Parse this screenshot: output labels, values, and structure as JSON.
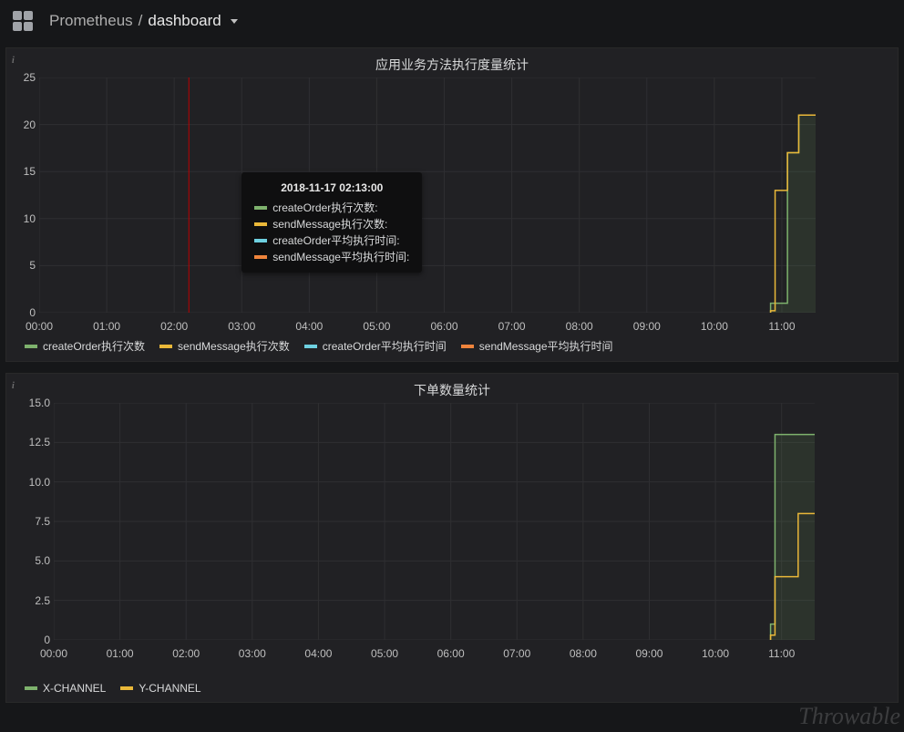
{
  "breadcrumb": {
    "root": "Prometheus",
    "sep": "/",
    "current": "dashboard"
  },
  "watermark": "Throwable",
  "colors": {
    "green": "#7eb26d",
    "yellow": "#eab839",
    "cyan": "#6ed0e0",
    "orange": "#ef843c",
    "grid": "#2f2f32",
    "hover": "#bb0000"
  },
  "panel1": {
    "title": "应用业务方法执行度量统计",
    "y": {
      "min": 0,
      "max": 25,
      "ticks": [
        0,
        5,
        10,
        15,
        20,
        25
      ]
    },
    "x": {
      "labels": [
        "00:00",
        "01:00",
        "02:00",
        "03:00",
        "04:00",
        "05:00",
        "06:00",
        "07:00",
        "08:00",
        "09:00",
        "10:00",
        "11:00"
      ]
    },
    "series": [
      {
        "key": "s1",
        "label": "createOrder执行次数",
        "color": "#7eb26d",
        "fill": true,
        "steps": [
          {
            "t": 10.833,
            "v": 1
          },
          {
            "t": 11.083,
            "v": 17
          },
          {
            "t": 11.25,
            "v": 21
          }
        ]
      },
      {
        "key": "s2",
        "label": "sendMessage执行次数",
        "color": "#eab839",
        "fill": false,
        "steps": [
          {
            "t": 10.833,
            "v": 0.2
          },
          {
            "t": 10.9,
            "v": 13
          },
          {
            "t": 11.083,
            "v": 17
          },
          {
            "t": 11.25,
            "v": 21
          }
        ]
      },
      {
        "key": "s3",
        "label": "createOrder平均执行时间",
        "color": "#6ed0e0",
        "fill": false,
        "steps": []
      },
      {
        "key": "s4",
        "label": "sendMessage平均执行时间",
        "color": "#ef843c",
        "fill": false,
        "steps": []
      }
    ],
    "hover": {
      "t": 2.217,
      "title": "2018-11-17 02:13:00",
      "rows": [
        {
          "color": "#7eb26d",
          "label": "createOrder执行次数:"
        },
        {
          "color": "#eab839",
          "label": "sendMessage执行次数:"
        },
        {
          "color": "#6ed0e0",
          "label": "createOrder平均执行时间:"
        },
        {
          "color": "#ef843c",
          "label": "sendMessage平均执行时间:"
        }
      ]
    }
  },
  "panel2": {
    "title": "下单数量统计",
    "y": {
      "min": 0,
      "max": 15,
      "ticks": [
        0,
        2.5,
        5.0,
        7.5,
        10.0,
        12.5,
        15.0
      ]
    },
    "x": {
      "labels": [
        "00:00",
        "01:00",
        "02:00",
        "03:00",
        "04:00",
        "05:00",
        "06:00",
        "07:00",
        "08:00",
        "09:00",
        "10:00",
        "11:00"
      ]
    },
    "series": [
      {
        "key": "c1",
        "label": "X-CHANNEL",
        "color": "#7eb26d",
        "fill": true,
        "steps": [
          {
            "t": 10.833,
            "v": 1
          },
          {
            "t": 10.9,
            "v": 13
          }
        ]
      },
      {
        "key": "c2",
        "label": "Y-CHANNEL",
        "color": "#eab839",
        "fill": false,
        "steps": [
          {
            "t": 10.833,
            "v": 0.3
          },
          {
            "t": 10.9,
            "v": 4
          },
          {
            "t": 11.25,
            "v": 8
          }
        ]
      }
    ]
  }
}
